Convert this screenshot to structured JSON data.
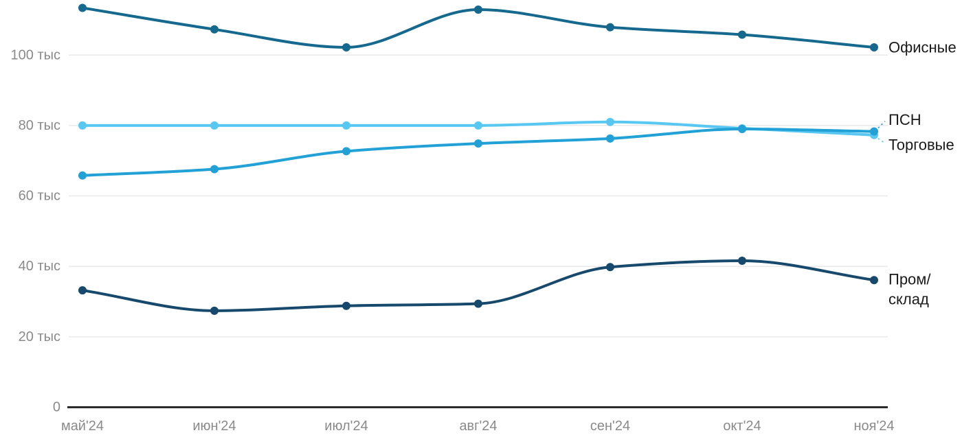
{
  "chart_data": {
    "type": "line",
    "title": "",
    "unit": "тыс",
    "x_labels": [
      "май'24",
      "июн'24",
      "июл'24",
      "авг'24",
      "сен'24",
      "окт'24",
      "ноя'24"
    ],
    "y_ticks": [
      {
        "value": 0,
        "label": "0"
      },
      {
        "value": 20,
        "label": "20 тыс"
      },
      {
        "value": 40,
        "label": "40 тыс"
      },
      {
        "value": 60,
        "label": "60 тыс"
      },
      {
        "value": 80,
        "label": "80 тыс"
      },
      {
        "value": 100,
        "label": "100 тыс"
      }
    ],
    "ylim": [
      0,
      116
    ],
    "grid": true,
    "legend_position": "right-direct-labels",
    "series": [
      {
        "key": "offices",
        "name": "Офисные",
        "color": "#15688E",
        "values": [
          113.4,
          107.3,
          102.2,
          112.9,
          107.9,
          105.8,
          102.2
        ],
        "label_lines": [
          "Офисные"
        ],
        "label_offset_y": 0,
        "leader": false
      },
      {
        "key": "retail",
        "name": "Торговые",
        "color": "#58C8F2",
        "values": [
          80,
          80,
          80,
          80,
          81,
          79.2,
          77.3
        ],
        "label_lines": [
          "Торговые"
        ],
        "label_offset_y": 14,
        "leader": true
      },
      {
        "key": "psn",
        "name": "ПСН",
        "color": "#21A1D6",
        "values": [
          65.8,
          67.6,
          72.7,
          74.9,
          76.3,
          79,
          78.3
        ],
        "label_lines": [
          "ПСН"
        ],
        "label_offset_y": -17,
        "leader": true
      },
      {
        "key": "industrial",
        "name": "Пром/склад",
        "color": "#17496D",
        "values": [
          33.2,
          27.4,
          28.8,
          29.4,
          39.8,
          41.6,
          36.1
        ],
        "label_lines": [
          "Пром/",
          "склад"
        ],
        "label_offset_y": -1,
        "leader": false
      }
    ],
    "colors": {
      "grid": "#E9E9E9",
      "axis": "#2B2B2B",
      "tick_text": "#8A8A8A",
      "label_text": "#1A1A1A",
      "background": "#FFFFFF"
    }
  }
}
